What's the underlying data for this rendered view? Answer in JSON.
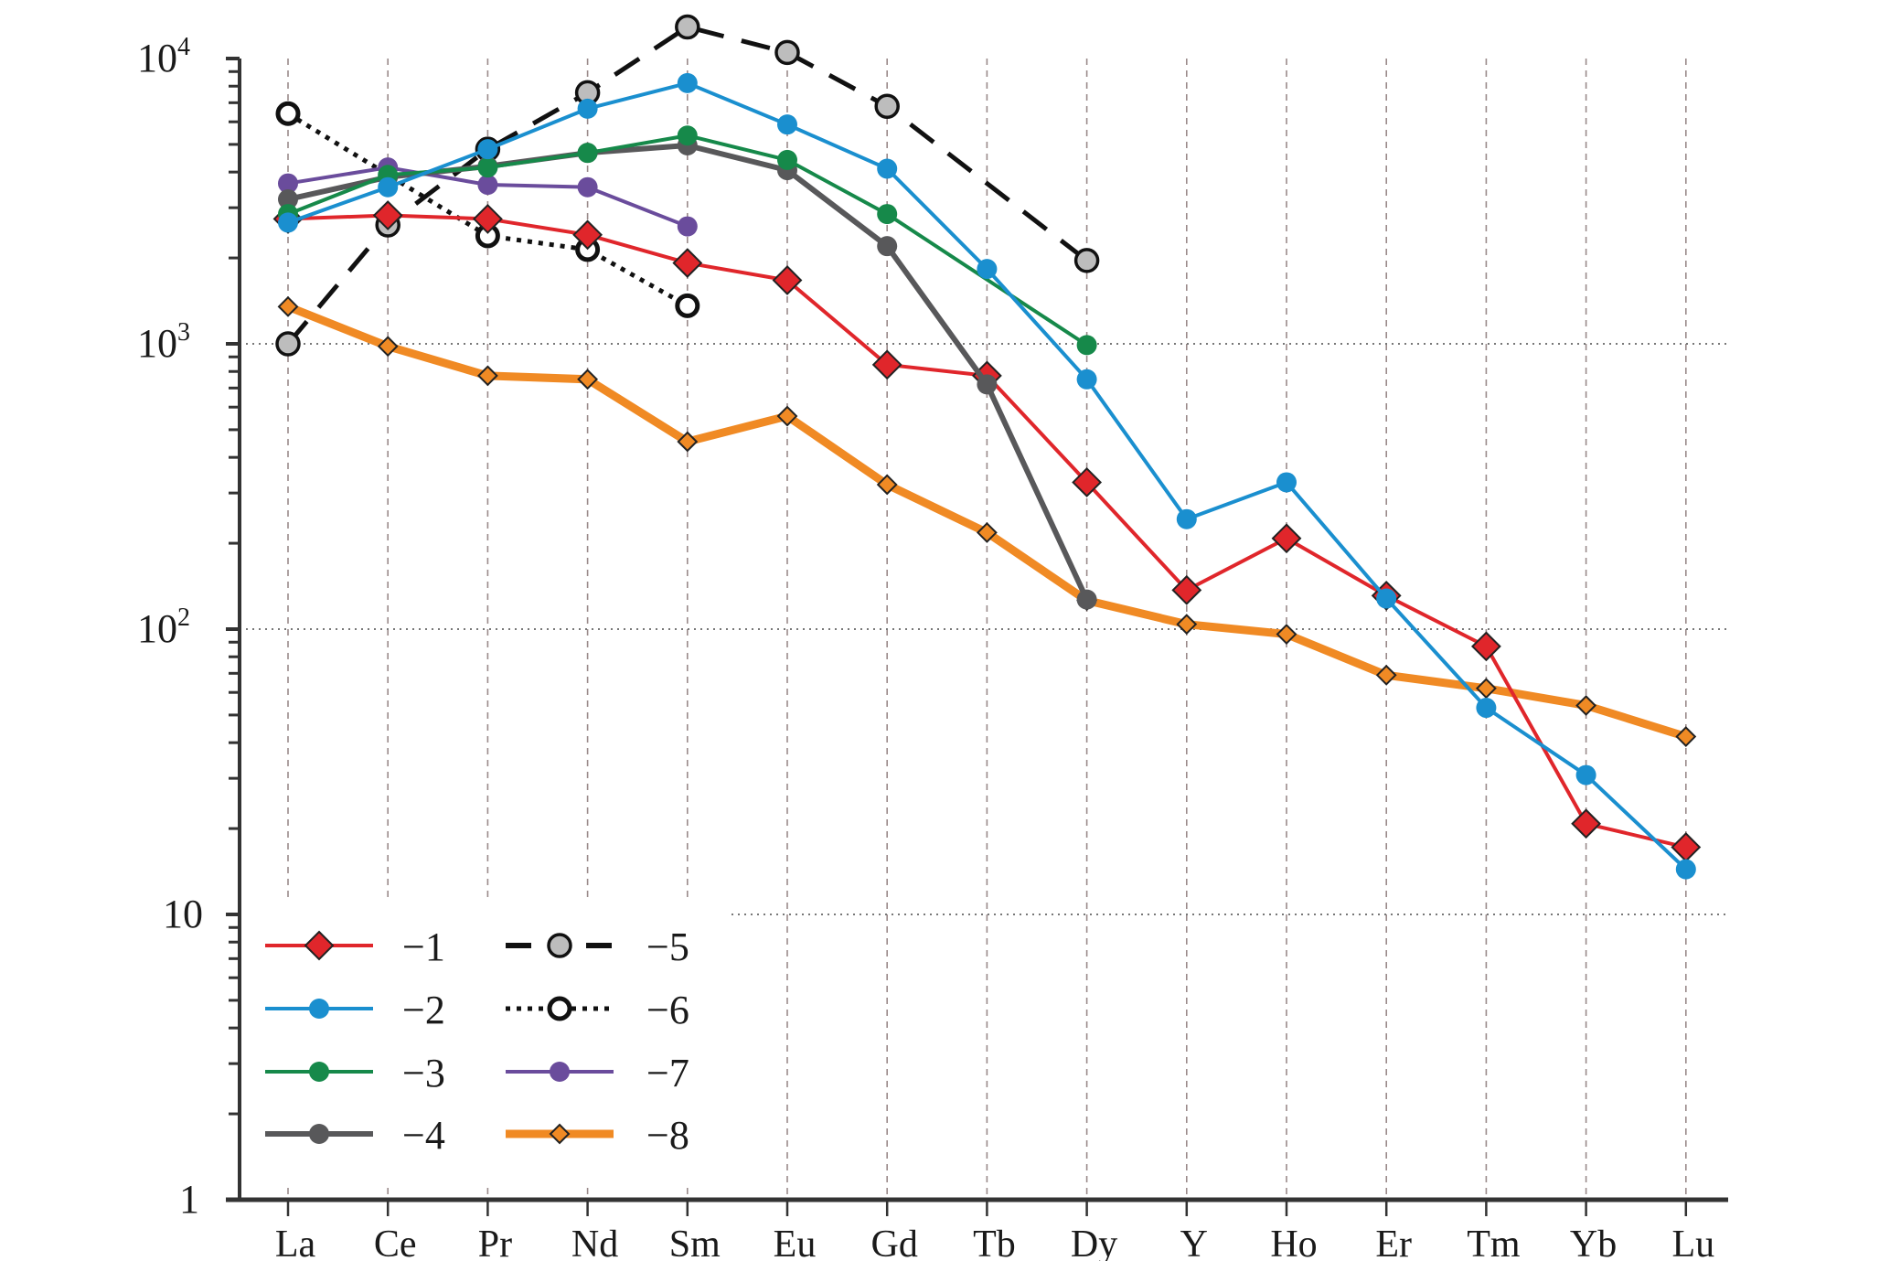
{
  "chart_data": {
    "type": "line",
    "title": "",
    "xlabel": "",
    "ylabel": "",
    "yscale": "log",
    "ylim": [
      1,
      10000
    ],
    "grid": true,
    "legend_position": "bottom-left",
    "categories": [
      "La",
      "Ce",
      "Pr",
      "Nd",
      "Sm",
      "Eu",
      "Gd",
      "Tb",
      "Dy",
      "Y",
      "Ho",
      "Er",
      "Tm",
      "Yb",
      "Lu"
    ],
    "y_ticks": [
      {
        "value": 10000,
        "base": "10",
        "exp": "4"
      },
      {
        "value": 1000,
        "base": "10",
        "exp": "3"
      },
      {
        "value": 100,
        "base": "10",
        "exp": "2"
      },
      {
        "value": 10,
        "base": "10",
        "exp": ""
      },
      {
        "value": 1,
        "base": "1",
        "exp": ""
      }
    ],
    "series": [
      {
        "name": "−1",
        "color": "#e0262b",
        "marker": "diamond",
        "marker_fill": "#e0262b",
        "dash": "solid",
        "values": [
          2740,
          2820,
          2740,
          2410,
          1920,
          1670,
          845,
          773,
          327,
          137,
          208,
          131,
          87,
          20.8,
          17.2
        ]
      },
      {
        "name": "−2",
        "color": "#1a8fcf",
        "marker": "circle",
        "marker_fill": "#1a8fcf",
        "dash": "solid",
        "values": [
          2660,
          3540,
          4810,
          6670,
          8200,
          5870,
          4110,
          1830,
          751,
          243,
          327,
          128,
          53,
          30.8,
          14.4
        ]
      },
      {
        "name": "−3",
        "color": "#16894a",
        "marker": "circle",
        "marker_fill": "#16894a",
        "dash": "solid",
        "values": [
          2850,
          3910,
          4150,
          4670,
          5370,
          4410,
          2850,
          null,
          990,
          null,
          null,
          null,
          null,
          null,
          null
        ],
        "connect_gaps": true
      },
      {
        "name": "−4",
        "color": "#58585a",
        "marker": "circle",
        "marker_fill": "#58585a",
        "dash": "solid",
        "values": [
          3210,
          3840,
          4190,
          4670,
          4960,
          4060,
          2200,
          721,
          127,
          null,
          null,
          null,
          null,
          null,
          null
        ]
      },
      {
        "name": "−5",
        "color": "#111111",
        "marker": "circle-outline",
        "marker_fill": "#bdbdbd",
        "dash": "dashed",
        "values": [
          1000,
          2610,
          4810,
          7590,
          12900,
          10500,
          6800,
          null,
          1960,
          null,
          null,
          null,
          null,
          null,
          null
        ],
        "connect_gaps": true
      },
      {
        "name": "−6",
        "color": "#111111",
        "marker": "open-circle",
        "marker_fill": "#ffffff",
        "dash": "dotted",
        "values": [
          6410,
          null,
          2390,
          2140,
          1360,
          null,
          null,
          null,
          null,
          null,
          null,
          null,
          null,
          null,
          null
        ],
        "connect_gaps": true
      },
      {
        "name": "−7",
        "color": "#6a4c9c",
        "marker": "circle",
        "marker_fill": "#6a4c9c",
        "dash": "solid",
        "values": [
          3650,
          4150,
          3610,
          3540,
          2580,
          null,
          null,
          null,
          null,
          null,
          null,
          null,
          null,
          null,
          null
        ]
      },
      {
        "name": "−8",
        "color": "#f08a24",
        "marker": "small-diamond",
        "marker_fill": "#f08a24",
        "dash": "thick",
        "values": [
          1350,
          980,
          773,
          751,
          454,
          558,
          321,
          218,
          126,
          104,
          96,
          69,
          62,
          54,
          42
        ]
      }
    ]
  }
}
